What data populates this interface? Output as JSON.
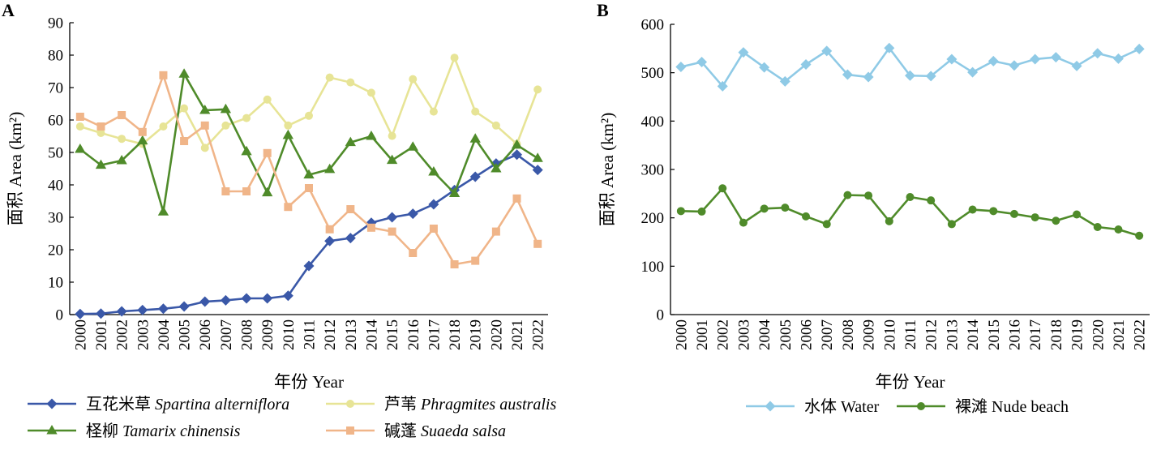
{
  "chart_data": [
    {
      "type": "line",
      "panel_label": "A",
      "title": "",
      "xlabel": "年份 Year",
      "ylabel": "面积 Area (km²)",
      "ylim": [
        0,
        90
      ],
      "yticks": [
        0,
        10,
        20,
        30,
        40,
        50,
        60,
        70,
        80,
        90
      ],
      "x": [
        "2000",
        "2001",
        "2002",
        "2003",
        "2004",
        "2005",
        "2006",
        "2007",
        "2008",
        "2009",
        "2010",
        "2011",
        "2012",
        "2013",
        "2014",
        "2015",
        "2016",
        "2017",
        "2018",
        "2019",
        "2020",
        "2021",
        "2022"
      ],
      "grid": false,
      "legend_position": "bottom",
      "series": [
        {
          "name_cn": "互花米草",
          "name_latin": "Spartina alterniflora",
          "color": "#3a58a8",
          "marker": "diamond",
          "values": [
            0.2,
            0.3,
            1.0,
            1.4,
            1.8,
            2.5,
            4.0,
            4.4,
            5.0,
            5.0,
            5.8,
            15.0,
            22.7,
            23.6,
            28.3,
            30.0,
            31.1,
            34.0,
            38.4,
            42.5,
            46.6,
            49.3,
            44.6
          ]
        },
        {
          "name_cn": "芦苇",
          "name_latin": "Phragmites australis",
          "color": "#e7e496",
          "marker": "circle",
          "values": [
            58.0,
            56.0,
            54.2,
            52.6,
            58.0,
            63.6,
            51.4,
            58.3,
            60.6,
            66.3,
            58.3,
            61.3,
            73.1,
            71.6,
            68.4,
            55.1,
            72.6,
            62.6,
            79.2,
            62.6,
            58.3,
            52.6,
            69.4
          ]
        },
        {
          "name_cn": "柽柳",
          "name_latin": "Tamarix chinensis",
          "color": "#4f8b2a",
          "marker": "triangle",
          "values": [
            51.0,
            46.1,
            47.5,
            53.6,
            31.7,
            74.2,
            63.0,
            63.3,
            50.3,
            37.6,
            55.3,
            43.1,
            44.8,
            53.1,
            55.0,
            47.6,
            51.7,
            44.0,
            37.4,
            54.2,
            45.0,
            52.3,
            48.2
          ]
        },
        {
          "name_cn": "碱蓬",
          "name_latin": "Suaeda salsa",
          "color": "#f0b589",
          "marker": "square",
          "values": [
            61.0,
            58.0,
            61.5,
            56.3,
            73.8,
            53.5,
            58.3,
            38.0,
            38.0,
            49.8,
            33.2,
            39.0,
            26.3,
            32.5,
            26.8,
            25.6,
            19.0,
            26.5,
            15.5,
            16.6,
            25.6,
            35.8,
            21.8
          ]
        }
      ]
    },
    {
      "type": "line",
      "panel_label": "B",
      "title": "",
      "xlabel": "年份 Year",
      "ylabel": "面积 Area (km²)",
      "ylim": [
        0,
        600
      ],
      "yticks": [
        0,
        100,
        200,
        300,
        400,
        500,
        600
      ],
      "x": [
        "2000",
        "2001",
        "2002",
        "2003",
        "2004",
        "2005",
        "2006",
        "2007",
        "2008",
        "2009",
        "2010",
        "2011",
        "2012",
        "2013",
        "2014",
        "2015",
        "2016",
        "2017",
        "2018",
        "2019",
        "2020",
        "2021",
        "2022"
      ],
      "grid": false,
      "legend_position": "bottom",
      "series": [
        {
          "name_cn": "水体",
          "name_latin": "Water",
          "color": "#8fcae6",
          "marker": "diamond",
          "values": [
            512,
            522,
            472,
            542,
            511,
            482,
            517,
            545,
            496,
            491,
            551,
            494,
            493,
            528,
            501,
            524,
            515,
            528,
            532,
            514,
            540,
            529,
            549
          ]
        },
        {
          "name_cn": "裸滩",
          "name_latin": "Nude beach",
          "color": "#4f8b2a",
          "marker": "circle",
          "values": [
            214,
            213,
            261,
            190,
            219,
            221,
            203,
            187,
            247,
            246,
            193,
            243,
            236,
            187,
            217,
            214,
            208,
            201,
            194,
            207,
            181,
            176,
            163
          ]
        }
      ]
    }
  ]
}
